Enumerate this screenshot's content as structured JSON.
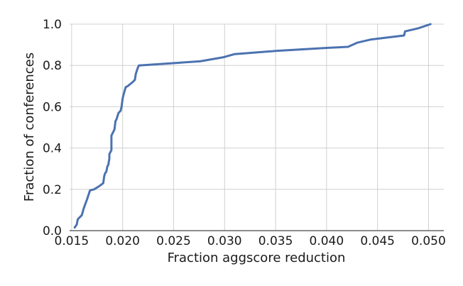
{
  "chart_data": {
    "type": "line",
    "title": "",
    "xlabel": "Fraction aggscore reduction",
    "ylabel": "Fraction of conferences",
    "xlim": [
      0.0148,
      0.0515
    ],
    "ylim": [
      0.0,
      1.0
    ],
    "xticks": [
      0.015,
      0.02,
      0.025,
      0.03,
      0.035,
      0.04,
      0.045,
      0.05
    ],
    "xtick_labels": [
      "0.015",
      "0.020",
      "0.025",
      "0.030",
      "0.035",
      "0.040",
      "0.045",
      "0.050"
    ],
    "yticks": [
      0.0,
      0.2,
      0.4,
      0.6,
      0.8,
      1.0
    ],
    "ytick_labels": [
      "0.0",
      "0.2",
      "0.4",
      "0.6",
      "0.8",
      "1.0"
    ],
    "grid": true,
    "series": [
      {
        "name": "",
        "color": "#4c72b0",
        "x": [
          0.0153,
          0.0155,
          0.0156,
          0.0158,
          0.016,
          0.0162,
          0.0165,
          0.0167,
          0.0168,
          0.0172,
          0.0177,
          0.0181,
          0.0182,
          0.0183,
          0.0184,
          0.0185,
          0.0186,
          0.0187,
          0.0187,
          0.0189,
          0.0189,
          0.0192,
          0.0193,
          0.0194,
          0.0196,
          0.0198,
          0.0199,
          0.02,
          0.0201,
          0.0203,
          0.0205,
          0.021,
          0.0212,
          0.0213,
          0.0215,
          0.0216,
          0.0276,
          0.0299,
          0.031,
          0.035,
          0.04,
          0.0421,
          0.043,
          0.0443,
          0.0476,
          0.0477,
          0.049,
          0.0502
        ],
        "y": [
          0.015,
          0.03,
          0.055,
          0.065,
          0.075,
          0.11,
          0.15,
          0.18,
          0.195,
          0.2,
          0.215,
          0.23,
          0.265,
          0.28,
          0.285,
          0.31,
          0.32,
          0.35,
          0.37,
          0.39,
          0.46,
          0.49,
          0.53,
          0.54,
          0.57,
          0.58,
          0.6,
          0.64,
          0.66,
          0.695,
          0.7,
          0.72,
          0.73,
          0.76,
          0.79,
          0.8,
          0.82,
          0.84,
          0.855,
          0.87,
          0.885,
          0.89,
          0.91,
          0.925,
          0.945,
          0.965,
          0.98,
          1.0
        ]
      }
    ]
  }
}
